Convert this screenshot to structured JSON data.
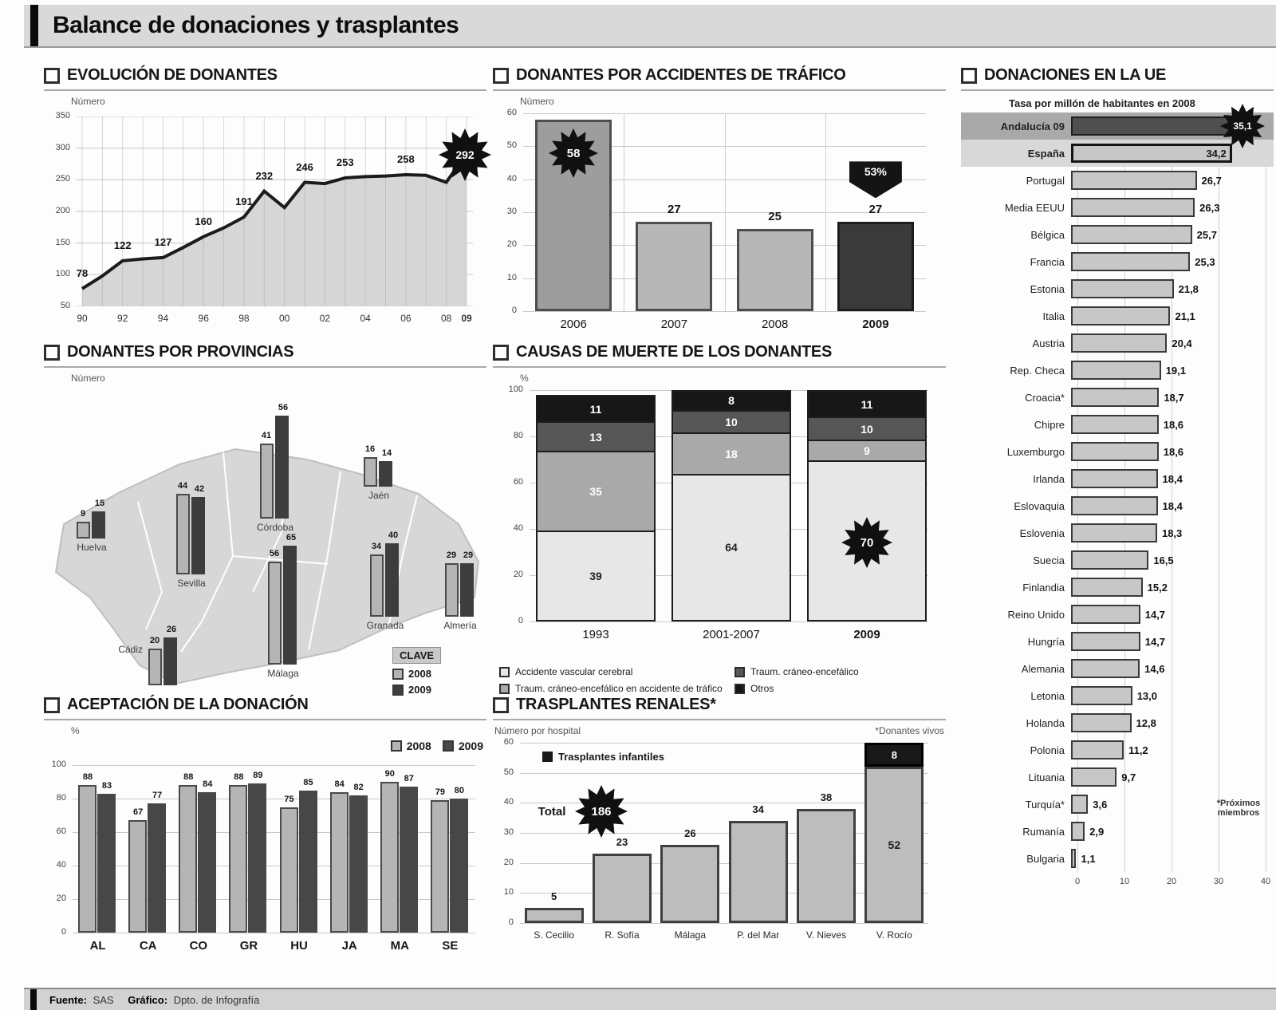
{
  "title": "Balance de donaciones y trasplantes",
  "footer": {
    "source_label": "Fuente:",
    "source_value": "SAS",
    "credit_label": "Gráfico:",
    "credit_value": "Dpto. de Infografía"
  },
  "palette": {
    "light_bar": "#b5b5b5",
    "mid_bar": "#9d9d9d",
    "dark_bar": "#3d3d3d",
    "black": "#141414",
    "area_fill": "#d6d6d6",
    "stacked": [
      "#e7e7e7",
      "#a9a9a9",
      "#565656",
      "#171717"
    ]
  },
  "sections": {
    "evolucion": {
      "title": "EVOLUCIÓN DE DONANTES",
      "unit": "Número"
    },
    "trafico": {
      "title": "DONANTES POR ACCIDENTES DE TRÁFICO",
      "unit": "Número"
    },
    "ue": {
      "title": "DONACIONES EN LA UE",
      "subtitle": "Tasa por millón de habitantes en 2008",
      "footnote": "*Próximos\nmiembros"
    },
    "provincias": {
      "title": "DONANTES POR PROVINCIAS",
      "unit": "Número",
      "legend_title": "CLAVE",
      "legend": [
        "2008",
        "2009"
      ]
    },
    "causas": {
      "title": "CAUSAS DE MUERTE DE LOS DONANTES",
      "unit": "%"
    },
    "aceptacion": {
      "title": "ACEPTACIÓN DE LA DONACIÓN",
      "unit": "%",
      "legend": [
        "2008",
        "2009"
      ]
    },
    "renales": {
      "title": "TRASPLANTES RENALES*",
      "unit": "Número por hospital",
      "note": "*Donantes vivos",
      "legend": "Trasplantes infantiles",
      "total_label": "Total",
      "total_value": "186"
    }
  },
  "chart_data": [
    {
      "id": "evolucion",
      "type": "area",
      "title": "Evolución de donantes",
      "ylabel": "Número",
      "ylim": [
        50,
        350
      ],
      "yticks": [
        50,
        100,
        150,
        200,
        250,
        300,
        350
      ],
      "x": [
        "90",
        "91",
        "92",
        "93",
        "94",
        "95",
        "96",
        "97",
        "98",
        "99",
        "00",
        "01",
        "02",
        "03",
        "04",
        "05",
        "06",
        "07",
        "08",
        "09"
      ],
      "values": [
        78,
        98,
        122,
        125,
        127,
        143,
        160,
        174,
        191,
        232,
        206,
        246,
        244,
        253,
        255,
        256,
        258,
        257,
        246,
        292
      ],
      "point_labels": {
        "90": 78,
        "92": 122,
        "94": 127,
        "96": 160,
        "98": 191,
        "99": 232,
        "01": 246,
        "03": 253,
        "06": 258
      },
      "xticks": [
        "90",
        "92",
        "94",
        "96",
        "98",
        "00",
        "02",
        "04",
        "06",
        "08",
        "09"
      ],
      "highlight": {
        "x": "09",
        "value": 292,
        "display": "292",
        "style": "starburst"
      }
    },
    {
      "id": "trafico",
      "type": "bar",
      "ylabel": "Número",
      "ylim": [
        0,
        60
      ],
      "yticks": [
        0,
        10,
        20,
        30,
        40,
        50,
        60
      ],
      "categories": [
        "2006",
        "2007",
        "2008",
        "2009"
      ],
      "values": [
        58,
        27,
        25,
        27
      ],
      "bar_colors": [
        "#9d9d9d",
        "#b7b7b7",
        "#b7b7b7",
        "#3a3a3a"
      ],
      "highlight": {
        "category": "2006",
        "display": "58",
        "style": "starburst"
      },
      "badge": {
        "category": "2009",
        "text": "53%",
        "shape": "arrow-down"
      }
    },
    {
      "id": "ue",
      "type": "hbar",
      "xlim": [
        0,
        40
      ],
      "xticks": [
        0,
        10,
        20,
        30,
        40
      ],
      "rows": [
        {
          "label": "Andalucía 09",
          "value": 35.1,
          "display": "35,1",
          "style": "highlight"
        },
        {
          "label": "España",
          "value": 34.2,
          "display": "34,2",
          "style": "spain"
        },
        {
          "label": "Portugal",
          "value": 26.7,
          "display": "26,7"
        },
        {
          "label": "Media EEUU",
          "value": 26.3,
          "display": "26,3"
        },
        {
          "label": "Bélgica",
          "value": 25.7,
          "display": "25,7"
        },
        {
          "label": "Francia",
          "value": 25.3,
          "display": "25,3"
        },
        {
          "label": "Estonia",
          "value": 21.8,
          "display": "21,8"
        },
        {
          "label": "Italia",
          "value": 21.1,
          "display": "21,1"
        },
        {
          "label": "Austria",
          "value": 20.4,
          "display": "20,4"
        },
        {
          "label": "Rep. Checa",
          "value": 19.1,
          "display": "19,1"
        },
        {
          "label": "Croacia*",
          "value": 18.7,
          "display": "18,7"
        },
        {
          "label": "Chipre",
          "value": 18.6,
          "display": "18,6"
        },
        {
          "label": "Luxemburgo",
          "value": 18.6,
          "display": "18,6"
        },
        {
          "label": "Irlanda",
          "value": 18.4,
          "display": "18,4"
        },
        {
          "label": "Eslovaquia",
          "value": 18.4,
          "display": "18,4"
        },
        {
          "label": "Eslovenia",
          "value": 18.3,
          "display": "18,3"
        },
        {
          "label": "Suecia",
          "value": 16.5,
          "display": "16,5"
        },
        {
          "label": "Finlandia",
          "value": 15.2,
          "display": "15,2"
        },
        {
          "label": "Reino Unido",
          "value": 14.7,
          "display": "14,7"
        },
        {
          "label": "Hungría",
          "value": 14.7,
          "display": "14,7"
        },
        {
          "label": "Alemania",
          "value": 14.6,
          "display": "14,6"
        },
        {
          "label": "Letonia",
          "value": 13.0,
          "display": "13,0"
        },
        {
          "label": "Holanda",
          "value": 12.8,
          "display": "12,8"
        },
        {
          "label": "Polonia",
          "value": 11.2,
          "display": "11,2"
        },
        {
          "label": "Lituania",
          "value": 9.7,
          "display": "9,7"
        },
        {
          "label": "Turquía*",
          "value": 3.6,
          "display": "3,6"
        },
        {
          "label": "Rumanía",
          "value": 2.9,
          "display": "2,9"
        },
        {
          "label": "Bulgaria",
          "value": 1.1,
          "display": "1,1"
        }
      ]
    },
    {
      "id": "provincias",
      "type": "map-bars",
      "series": [
        "2008",
        "2009"
      ],
      "provinces": [
        {
          "name": "Huelva",
          "v2008": 9,
          "v2009": 15
        },
        {
          "name": "Sevilla",
          "v2008": 44,
          "v2009": 42
        },
        {
          "name": "Córdoba",
          "v2008": 41,
          "v2009": 56
        },
        {
          "name": "Jaén",
          "v2008": 16,
          "v2009": 14
        },
        {
          "name": "Cádiz",
          "v2008": 20,
          "v2009": 26
        },
        {
          "name": "Málaga",
          "v2008": 56,
          "v2009": 65
        },
        {
          "name": "Granada",
          "v2008": 34,
          "v2009": 40
        },
        {
          "name": "Almería",
          "v2008": 29,
          "v2009": 29
        }
      ]
    },
    {
      "id": "causas",
      "type": "stacked-bar",
      "ylim": [
        0,
        100
      ],
      "yticks": [
        0,
        20,
        40,
        60,
        80,
        100
      ],
      "categories": [
        "1993",
        "2001-2007",
        "2009"
      ],
      "segments": [
        "Accidente vascular cerebral",
        "Traum. cráneo-encefálico en accidente de tráfico",
        "Traum. cráneo-encefálico",
        "Otros"
      ],
      "series": [
        {
          "name": "1993",
          "values": [
            39,
            35,
            13,
            11
          ]
        },
        {
          "name": "2001-2007",
          "values": [
            64,
            18,
            10,
            8
          ]
        },
        {
          "name": "2009",
          "values": [
            70,
            9,
            10,
            11
          ]
        }
      ],
      "highlight": {
        "category": "2009",
        "segment": 0,
        "display": "70",
        "style": "starburst"
      }
    },
    {
      "id": "aceptacion",
      "type": "grouped-bar",
      "ylim": [
        0,
        100
      ],
      "yticks": [
        0,
        20,
        40,
        60,
        80,
        100
      ],
      "categories": [
        "AL",
        "CA",
        "CO",
        "GR",
        "HU",
        "JA",
        "MA",
        "SE"
      ],
      "series": [
        {
          "name": "2008",
          "values": [
            88,
            67,
            88,
            88,
            75,
            84,
            90,
            79
          ]
        },
        {
          "name": "2009",
          "values": [
            83,
            77,
            84,
            89,
            85,
            82,
            87,
            80
          ]
        }
      ]
    },
    {
      "id": "renales",
      "type": "bar",
      "ylim": [
        0,
        60
      ],
      "yticks": [
        0,
        10,
        20,
        30,
        40,
        50,
        60
      ],
      "categories": [
        "S. Cecilio",
        "R. Sofía",
        "Málaga",
        "P. del Mar",
        "V. Nieves",
        "V. Rocío"
      ],
      "values": [
        5,
        23,
        26,
        34,
        38,
        52
      ],
      "infantiles": [
        0,
        0,
        0,
        0,
        0,
        8
      ],
      "total": 186
    }
  ]
}
